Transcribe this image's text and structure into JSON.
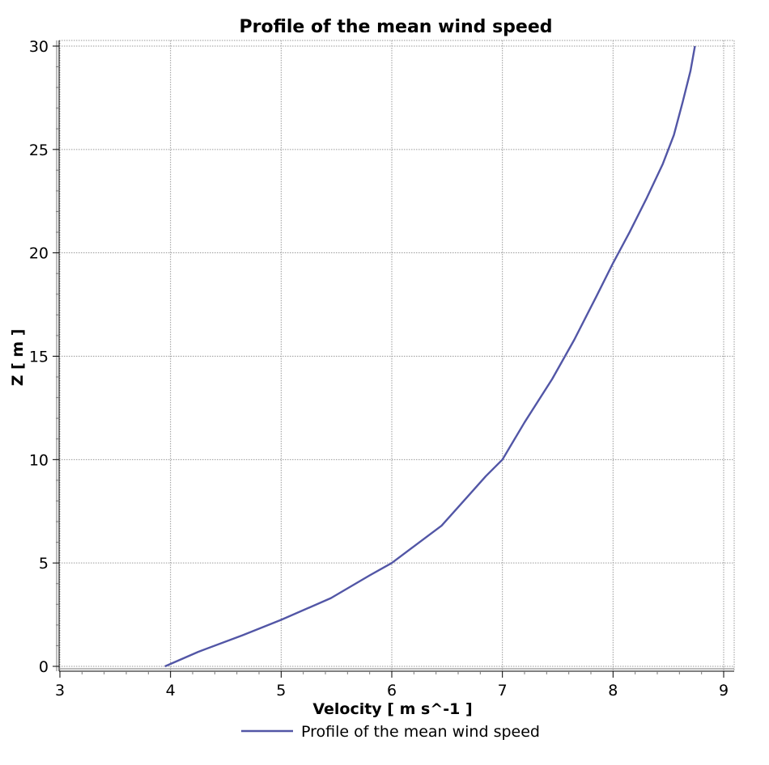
{
  "chart_data": {
    "type": "line",
    "title": "Profile of the mean wind speed",
    "xlabel": "Velocity [ m s^-1 ]",
    "ylabel": "Z [ m ]",
    "xlim": [
      3,
      9
    ],
    "ylim": [
      0,
      30
    ],
    "x_ticks": [
      "3",
      "4",
      "5",
      "6",
      "7",
      "8",
      "9"
    ],
    "y_ticks": [
      "0",
      "5",
      "10",
      "15",
      "20",
      "25",
      "30"
    ],
    "grid": true,
    "legend_position": "bottom",
    "series": [
      {
        "name": "Profile of the mean wind speed",
        "color": "#5256a6",
        "points": [
          [
            3.95,
            0.0
          ],
          [
            4.25,
            0.7
          ],
          [
            4.65,
            1.5
          ],
          [
            5.0,
            2.25
          ],
          [
            5.45,
            3.3
          ],
          [
            5.8,
            4.4
          ],
          [
            6.0,
            5.0
          ],
          [
            6.2,
            5.8
          ],
          [
            6.45,
            6.8
          ],
          [
            6.7,
            8.3
          ],
          [
            6.85,
            9.2
          ],
          [
            7.0,
            10.0
          ],
          [
            7.2,
            11.8
          ],
          [
            7.45,
            13.9
          ],
          [
            7.65,
            15.8
          ],
          [
            7.85,
            17.9
          ],
          [
            8.0,
            19.5
          ],
          [
            8.15,
            21.0
          ],
          [
            8.3,
            22.6
          ],
          [
            8.45,
            24.3
          ],
          [
            8.55,
            25.7
          ],
          [
            8.63,
            27.3
          ],
          [
            8.7,
            28.8
          ],
          [
            8.74,
            30.0
          ]
        ]
      }
    ]
  }
}
